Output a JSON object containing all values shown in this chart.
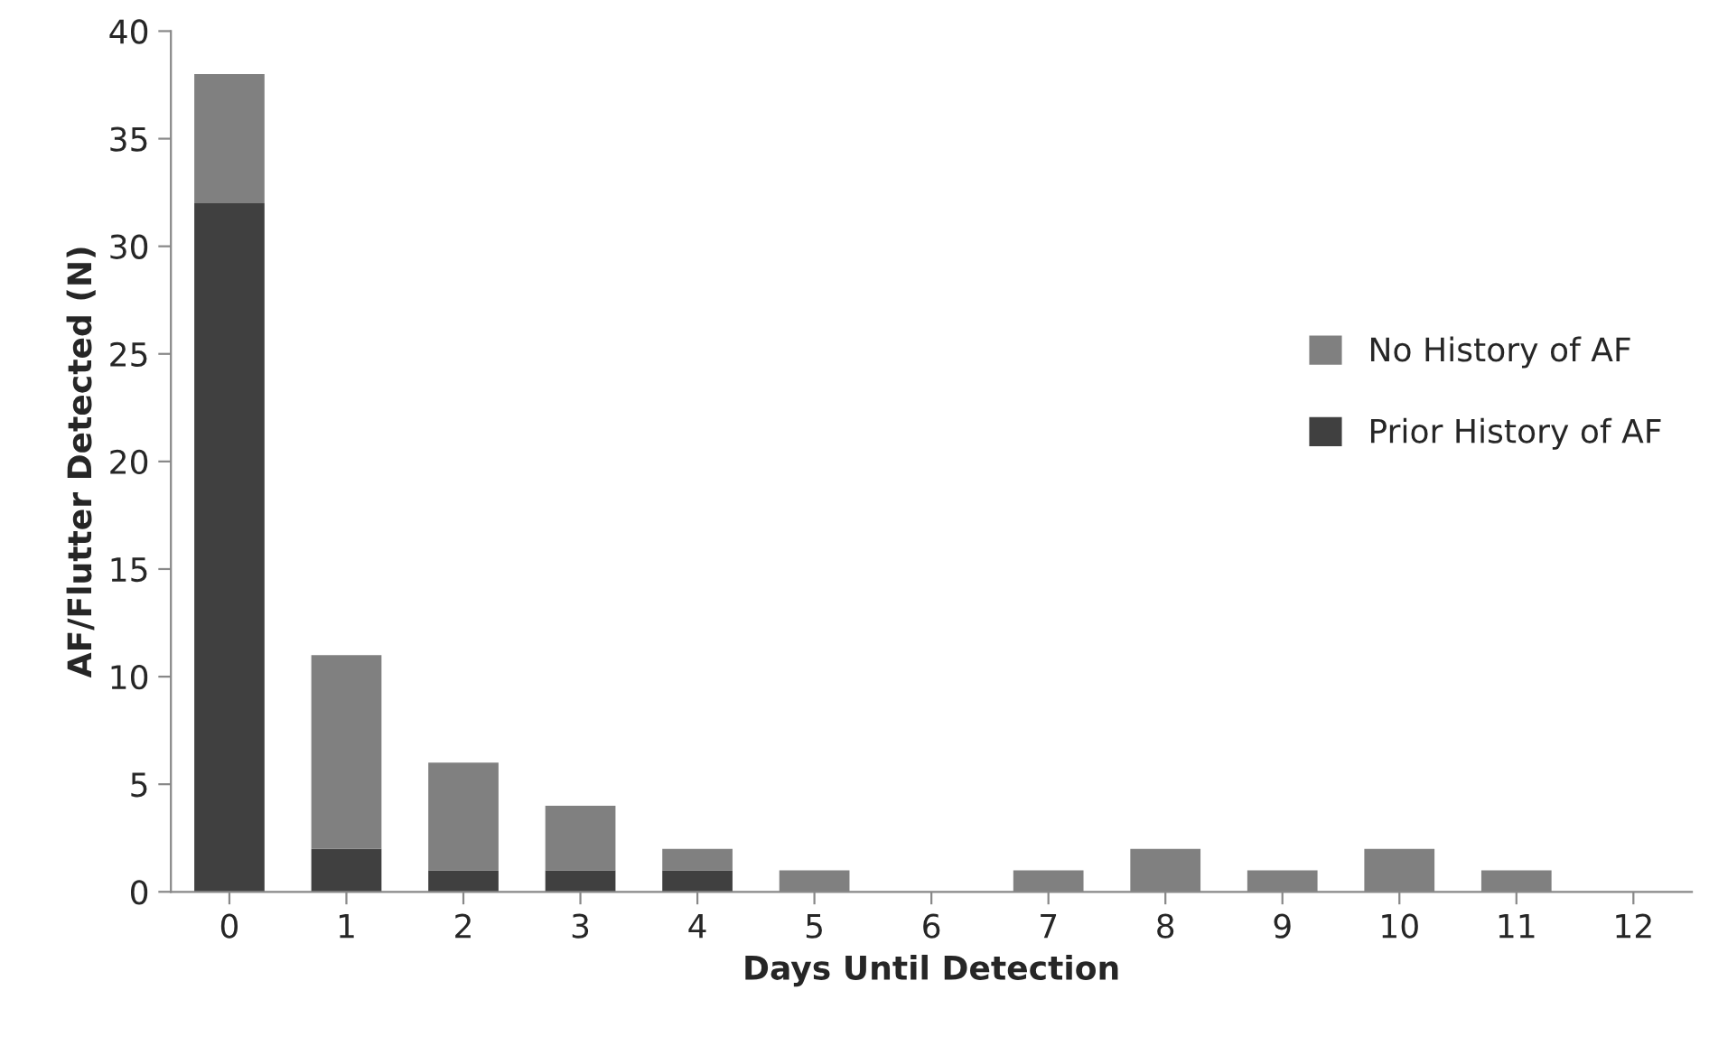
{
  "chart_data": {
    "type": "bar",
    "stacked": true,
    "xlabel": "Days Until Detection",
    "ylabel": "AF/Flutter Detected (N)",
    "categories": [
      "0",
      "1",
      "2",
      "3",
      "4",
      "5",
      "6",
      "7",
      "8",
      "9",
      "10",
      "11",
      "12"
    ],
    "series": [
      {
        "name": "Prior History of AF",
        "color": "#404040",
        "values": [
          32,
          2,
          1,
          1,
          1,
          0,
          0,
          0,
          0,
          0,
          0,
          0,
          0
        ]
      },
      {
        "name": "No History of AF",
        "color": "#808080",
        "values": [
          6,
          9,
          5,
          3,
          1,
          1,
          0,
          1,
          2,
          1,
          2,
          1,
          0
        ]
      }
    ],
    "ylim": [
      0,
      40
    ],
    "yticks": [
      0,
      5,
      10,
      15,
      20,
      25,
      30,
      35,
      40
    ],
    "grid": false,
    "legend": "right"
  }
}
